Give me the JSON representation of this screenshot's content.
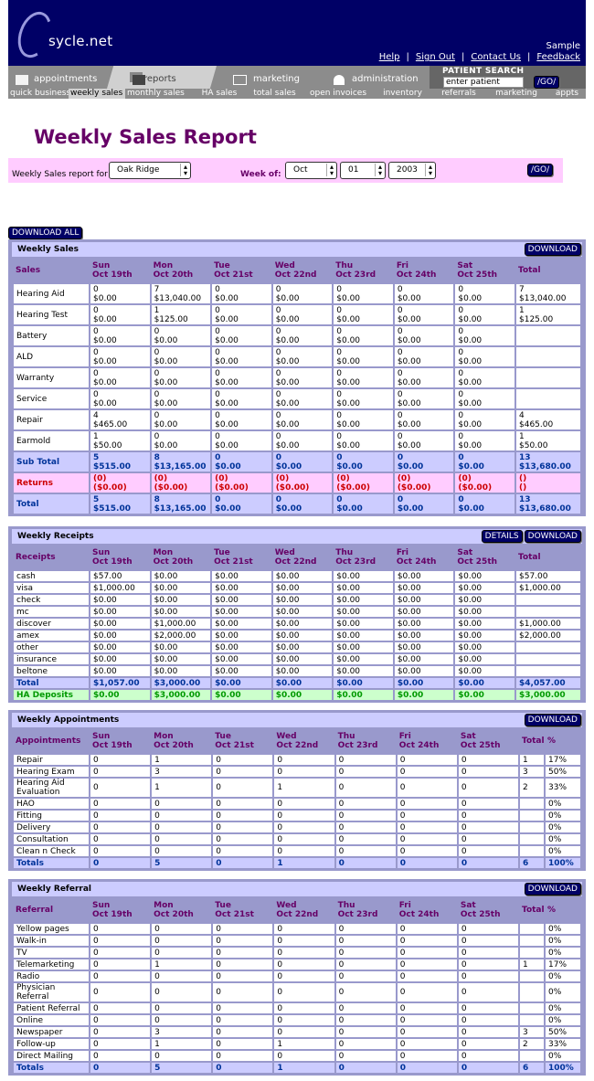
{
  "header": {
    "logo_text": "sycle.net",
    "user": "Sample",
    "links": [
      "Help",
      "Sign Out",
      "Contact Us",
      "Feedback"
    ]
  },
  "nav": {
    "tabs": [
      {
        "label": "appointments",
        "icon": "calendar-icon"
      },
      {
        "label": "reports",
        "icon": "documents-icon",
        "active": true
      },
      {
        "label": "marketing",
        "icon": "envelope-icon"
      },
      {
        "label": "administration",
        "icon": "person-icon"
      }
    ],
    "patient_search": {
      "label": "PATIENT SEARCH",
      "value": "enter patient",
      "go": "/GO/"
    }
  },
  "subnav": [
    "quick business",
    "weekly sales",
    "monthly sales",
    "HA sales",
    "total sales",
    "open invoices",
    "inventory",
    "referrals",
    "marketing",
    "appts"
  ],
  "subnav_active": "weekly sales",
  "page_title": "Weekly Sales Report",
  "filter": {
    "label": "Weekly Sales report for",
    "location": "Oak Ridge",
    "week_label": "Week of:",
    "month": "Oct",
    "day": "01",
    "year": "2003",
    "go": "/GO/"
  },
  "download_all": "DOWNLOAD ALL",
  "days": [
    [
      "Sun",
      "Oct 19th"
    ],
    [
      "Mon",
      "Oct 20th"
    ],
    [
      "Tue",
      "Oct 21st"
    ],
    [
      "Wed",
      "Oct 22nd"
    ],
    [
      "Thu",
      "Oct 23rd"
    ],
    [
      "Fri",
      "Oct 24th"
    ],
    [
      "Sat",
      "Oct 25th"
    ]
  ],
  "sales": {
    "title": "Weekly Sales",
    "download": "DOWNLOAD",
    "col0": "Sales",
    "total_col": "Total",
    "rows": [
      {
        "label": "Hearing Aid",
        "cells": [
          [
            "0",
            "$0.00"
          ],
          [
            "7",
            "$13,040.00"
          ],
          [
            "0",
            "$0.00"
          ],
          [
            "0",
            "$0.00"
          ],
          [
            "0",
            "$0.00"
          ],
          [
            "0",
            "$0.00"
          ],
          [
            "0",
            "$0.00"
          ],
          [
            "7",
            "$13,040.00"
          ]
        ]
      },
      {
        "label": "Hearing Test",
        "cells": [
          [
            "0",
            "$0.00"
          ],
          [
            "1",
            "$125.00"
          ],
          [
            "0",
            "$0.00"
          ],
          [
            "0",
            "$0.00"
          ],
          [
            "0",
            "$0.00"
          ],
          [
            "0",
            "$0.00"
          ],
          [
            "0",
            "$0.00"
          ],
          [
            "1",
            "$125.00"
          ]
        ]
      },
      {
        "label": "Battery",
        "cells": [
          [
            "0",
            "$0.00"
          ],
          [
            "0",
            "$0.00"
          ],
          [
            "0",
            "$0.00"
          ],
          [
            "0",
            "$0.00"
          ],
          [
            "0",
            "$0.00"
          ],
          [
            "0",
            "$0.00"
          ],
          [
            "0",
            "$0.00"
          ],
          [
            "",
            ""
          ]
        ]
      },
      {
        "label": "ALD",
        "cells": [
          [
            "0",
            "$0.00"
          ],
          [
            "0",
            "$0.00"
          ],
          [
            "0",
            "$0.00"
          ],
          [
            "0",
            "$0.00"
          ],
          [
            "0",
            "$0.00"
          ],
          [
            "0",
            "$0.00"
          ],
          [
            "0",
            "$0.00"
          ],
          [
            "",
            ""
          ]
        ]
      },
      {
        "label": "Warranty",
        "cells": [
          [
            "0",
            "$0.00"
          ],
          [
            "0",
            "$0.00"
          ],
          [
            "0",
            "$0.00"
          ],
          [
            "0",
            "$0.00"
          ],
          [
            "0",
            "$0.00"
          ],
          [
            "0",
            "$0.00"
          ],
          [
            "0",
            "$0.00"
          ],
          [
            "",
            ""
          ]
        ]
      },
      {
        "label": "Service",
        "cells": [
          [
            "0",
            "$0.00"
          ],
          [
            "0",
            "$0.00"
          ],
          [
            "0",
            "$0.00"
          ],
          [
            "0",
            "$0.00"
          ],
          [
            "0",
            "$0.00"
          ],
          [
            "0",
            "$0.00"
          ],
          [
            "0",
            "$0.00"
          ],
          [
            "",
            ""
          ]
        ]
      },
      {
        "label": "Repair",
        "cells": [
          [
            "4",
            "$465.00"
          ],
          [
            "0",
            "$0.00"
          ],
          [
            "0",
            "$0.00"
          ],
          [
            "0",
            "$0.00"
          ],
          [
            "0",
            "$0.00"
          ],
          [
            "0",
            "$0.00"
          ],
          [
            "0",
            "$0.00"
          ],
          [
            "4",
            "$465.00"
          ]
        ]
      },
      {
        "label": "Earmold",
        "cells": [
          [
            "1",
            "$50.00"
          ],
          [
            "0",
            "$0.00"
          ],
          [
            "0",
            "$0.00"
          ],
          [
            "0",
            "$0.00"
          ],
          [
            "0",
            "$0.00"
          ],
          [
            "0",
            "$0.00"
          ],
          [
            "0",
            "$0.00"
          ],
          [
            "1",
            "$50.00"
          ]
        ]
      },
      {
        "label": "Sub Total",
        "kind": "sub",
        "cells": [
          [
            "5",
            "$515.00"
          ],
          [
            "8",
            "$13,165.00"
          ],
          [
            "0",
            "$0.00"
          ],
          [
            "0",
            "$0.00"
          ],
          [
            "0",
            "$0.00"
          ],
          [
            "0",
            "$0.00"
          ],
          [
            "0",
            "$0.00"
          ],
          [
            "13",
            "$13,680.00"
          ]
        ]
      },
      {
        "label": "Returns",
        "kind": "ret",
        "cells": [
          [
            "(0)",
            "($0.00)"
          ],
          [
            "(0)",
            "($0.00)"
          ],
          [
            "(0)",
            "($0.00)"
          ],
          [
            "(0)",
            "($0.00)"
          ],
          [
            "(0)",
            "($0.00)"
          ],
          [
            "(0)",
            "($0.00)"
          ],
          [
            "(0)",
            "($0.00)"
          ],
          [
            "()",
            "()"
          ]
        ]
      },
      {
        "label": "Total",
        "kind": "sub",
        "cells": [
          [
            "5",
            "$515.00"
          ],
          [
            "8",
            "$13,165.00"
          ],
          [
            "0",
            "$0.00"
          ],
          [
            "0",
            "$0.00"
          ],
          [
            "0",
            "$0.00"
          ],
          [
            "0",
            "$0.00"
          ],
          [
            "0",
            "$0.00"
          ],
          [
            "13",
            "$13,680.00"
          ]
        ]
      }
    ]
  },
  "receipts": {
    "title": "Weekly Receipts",
    "details": "DETAILS",
    "download": "DOWNLOAD",
    "col0": "Receipts",
    "total_col": "Total",
    "rows": [
      {
        "label": "cash",
        "cells": [
          "$57.00",
          "$0.00",
          "$0.00",
          "$0.00",
          "$0.00",
          "$0.00",
          "$0.00",
          "$57.00"
        ]
      },
      {
        "label": "visa",
        "cells": [
          "$1,000.00",
          "$0.00",
          "$0.00",
          "$0.00",
          "$0.00",
          "$0.00",
          "$0.00",
          "$1,000.00"
        ]
      },
      {
        "label": "check",
        "cells": [
          "$0.00",
          "$0.00",
          "$0.00",
          "$0.00",
          "$0.00",
          "$0.00",
          "$0.00",
          ""
        ]
      },
      {
        "label": "mc",
        "cells": [
          "$0.00",
          "$0.00",
          "$0.00",
          "$0.00",
          "$0.00",
          "$0.00",
          "$0.00",
          ""
        ]
      },
      {
        "label": "discover",
        "cells": [
          "$0.00",
          "$1,000.00",
          "$0.00",
          "$0.00",
          "$0.00",
          "$0.00",
          "$0.00",
          "$1,000.00"
        ]
      },
      {
        "label": "amex",
        "cells": [
          "$0.00",
          "$2,000.00",
          "$0.00",
          "$0.00",
          "$0.00",
          "$0.00",
          "$0.00",
          "$2,000.00"
        ]
      },
      {
        "label": "other",
        "cells": [
          "$0.00",
          "$0.00",
          "$0.00",
          "$0.00",
          "$0.00",
          "$0.00",
          "$0.00",
          ""
        ]
      },
      {
        "label": "insurance",
        "cells": [
          "$0.00",
          "$0.00",
          "$0.00",
          "$0.00",
          "$0.00",
          "$0.00",
          "$0.00",
          ""
        ]
      },
      {
        "label": "beltone",
        "cells": [
          "$0.00",
          "$0.00",
          "$0.00",
          "$0.00",
          "$0.00",
          "$0.00",
          "$0.00",
          ""
        ]
      },
      {
        "label": "Total",
        "kind": "sub",
        "cells": [
          "$1,057.00",
          "$3,000.00",
          "$0.00",
          "$0.00",
          "$0.00",
          "$0.00",
          "$0.00",
          "$4,057.00"
        ]
      },
      {
        "label": "HA Deposits",
        "kind": "dep",
        "cells": [
          "$0.00",
          "$3,000.00",
          "$0.00",
          "$0.00",
          "$0.00",
          "$0.00",
          "$0.00",
          "$3,000.00"
        ]
      }
    ]
  },
  "appointments": {
    "title": "Weekly Appointments",
    "download": "DOWNLOAD",
    "col0": "Appointments",
    "total_col": "Total",
    "pct_col": "%",
    "rows": [
      {
        "label": "Repair",
        "cells": [
          "0",
          "1",
          "0",
          "0",
          "0",
          "0",
          "0",
          "1",
          "17%"
        ]
      },
      {
        "label": "Hearing Exam",
        "cells": [
          "0",
          "3",
          "0",
          "0",
          "0",
          "0",
          "0",
          "3",
          "50%"
        ]
      },
      {
        "label": "Hearing Aid Evaluation",
        "cells": [
          "0",
          "1",
          "0",
          "1",
          "0",
          "0",
          "0",
          "2",
          "33%"
        ]
      },
      {
        "label": "HAO",
        "cells": [
          "0",
          "0",
          "0",
          "0",
          "0",
          "0",
          "0",
          "",
          "0%"
        ]
      },
      {
        "label": "Fitting",
        "cells": [
          "0",
          "0",
          "0",
          "0",
          "0",
          "0",
          "0",
          "",
          "0%"
        ]
      },
      {
        "label": "Delivery",
        "cells": [
          "0",
          "0",
          "0",
          "0",
          "0",
          "0",
          "0",
          "",
          "0%"
        ]
      },
      {
        "label": "Consultation",
        "cells": [
          "0",
          "0",
          "0",
          "0",
          "0",
          "0",
          "0",
          "",
          "0%"
        ]
      },
      {
        "label": "Clean n Check",
        "cells": [
          "0",
          "0",
          "0",
          "0",
          "0",
          "0",
          "0",
          "",
          "0%"
        ]
      },
      {
        "label": "Totals",
        "kind": "sub",
        "cells": [
          "0",
          "5",
          "0",
          "1",
          "0",
          "0",
          "0",
          "6",
          "100%"
        ]
      }
    ]
  },
  "referral": {
    "title": "Weekly Referral",
    "download": "DOWNLOAD",
    "col0": "Referral",
    "total_col": "Total",
    "pct_col": "%",
    "rows": [
      {
        "label": "Yellow pages",
        "cells": [
          "0",
          "0",
          "0",
          "0",
          "0",
          "0",
          "0",
          "",
          "0%"
        ]
      },
      {
        "label": "Walk-in",
        "cells": [
          "0",
          "0",
          "0",
          "0",
          "0",
          "0",
          "0",
          "",
          "0%"
        ]
      },
      {
        "label": "TV",
        "cells": [
          "0",
          "0",
          "0",
          "0",
          "0",
          "0",
          "0",
          "",
          "0%"
        ]
      },
      {
        "label": "Telemarketing",
        "cells": [
          "0",
          "1",
          "0",
          "0",
          "0",
          "0",
          "0",
          "1",
          "17%"
        ]
      },
      {
        "label": "Radio",
        "cells": [
          "0",
          "0",
          "0",
          "0",
          "0",
          "0",
          "0",
          "",
          "0%"
        ]
      },
      {
        "label": "Physician Referral",
        "cells": [
          "0",
          "0",
          "0",
          "0",
          "0",
          "0",
          "0",
          "",
          "0%"
        ]
      },
      {
        "label": "Patient Referral",
        "cells": [
          "0",
          "0",
          "0",
          "0",
          "0",
          "0",
          "0",
          "",
          "0%"
        ]
      },
      {
        "label": "Online",
        "cells": [
          "0",
          "0",
          "0",
          "0",
          "0",
          "0",
          "0",
          "",
          "0%"
        ]
      },
      {
        "label": "Newspaper",
        "cells": [
          "0",
          "3",
          "0",
          "0",
          "0",
          "0",
          "0",
          "3",
          "50%"
        ]
      },
      {
        "label": "Follow-up",
        "cells": [
          "0",
          "1",
          "0",
          "1",
          "0",
          "0",
          "0",
          "2",
          "33%"
        ]
      },
      {
        "label": "Direct Mailing",
        "cells": [
          "0",
          "0",
          "0",
          "0",
          "0",
          "0",
          "0",
          "",
          "0%"
        ]
      },
      {
        "label": "Totals",
        "kind": "sub",
        "cells": [
          "0",
          "5",
          "0",
          "1",
          "0",
          "0",
          "0",
          "6",
          "100%"
        ]
      }
    ]
  },
  "colors": {
    "header_bg": "#000066",
    "title": "#660066",
    "panel": "#9999cc",
    "panel_header": "#ccccff",
    "filter_bg": "#ffccff",
    "returns": "#cc0000",
    "deposits": "#009900",
    "subtotal": "#003399"
  }
}
